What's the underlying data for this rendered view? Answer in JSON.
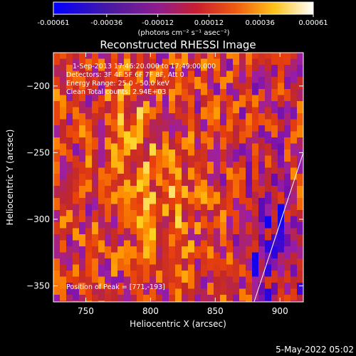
{
  "chart_data": {
    "type": "heatmap",
    "title": "Reconstructed RHESSI Image",
    "xlabel": "Heliocentric X (arcsec)",
    "ylabel": "Heliocentric Y (arcsec)",
    "xlim": [
      725,
      918
    ],
    "ylim": [
      -362,
      -175
    ],
    "x_ticks": [
      750,
      800,
      850,
      900
    ],
    "y_ticks": [
      -200,
      -250,
      -300,
      -350
    ],
    "colorbar": {
      "range": [
        -0.00061,
        0.00061
      ],
      "tick_values": [
        -0.00061,
        -0.00036,
        -0.00012,
        0.00012,
        0.00036,
        0.00061
      ],
      "tick_labels": [
        "-0.00061",
        "-0.00036",
        "-0.00012",
        "0.00012",
        "0.00036",
        "0.00061"
      ],
      "units": "(photons cm⁻² s⁻¹ asec⁻²)",
      "colors": [
        "#0000ff",
        "#6a0dad",
        "#9b1fa6",
        "#c0272d",
        "#e8400c",
        "#ff8c00",
        "#ffd21f",
        "#ffffff"
      ]
    },
    "annotations": [
      "1-Sep-2013 17:46:20.000 to 17:49:00.000",
      "Detectors: 3F 4F 5F 6F 7F 8F, Att 0",
      "Energy Range: 25.0 - 50.0 keV",
      "Clean     Total counts: 2.94E+03"
    ],
    "peak_label": "Position of Peak = [771,-193]",
    "peak": [
      771,
      -193
    ],
    "limb_line": [
      [
        880,
        -362
      ],
      [
        918,
        -250
      ]
    ]
  },
  "footer": {
    "date": "5-May-2022 05:02"
  }
}
